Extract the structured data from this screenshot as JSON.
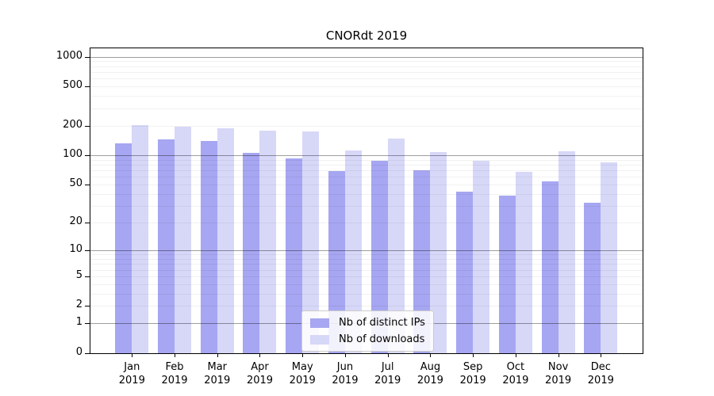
{
  "chart_data": {
    "type": "bar",
    "title": "CNORdt 2019",
    "categories": [
      "Jan",
      "Feb",
      "Mar",
      "Apr",
      "May",
      "Jun",
      "Jul",
      "Aug",
      "Sep",
      "Oct",
      "Nov",
      "Dec"
    ],
    "x_tick_second_line": "2019",
    "series": [
      {
        "name": "Nb of distinct IPs",
        "color": "#a6a6f2",
        "values": [
          131,
          144,
          139,
          105,
          93,
          69,
          88,
          70,
          42,
          38,
          54,
          32
        ]
      },
      {
        "name": "Nb of downloads",
        "color": "#d7d7f8",
        "values": [
          201,
          195,
          188,
          177,
          174,
          111,
          148,
          107,
          88,
          67,
          110,
          85
        ]
      }
    ],
    "xlabel": "",
    "ylabel": "",
    "yscale": "log1p",
    "y_ticks": [
      0,
      1,
      2,
      5,
      10,
      20,
      50,
      100,
      200,
      500,
      1000
    ],
    "ylim": [
      0,
      1230
    ],
    "grid": true,
    "gridline_emphasis_values": [
      1,
      10,
      100,
      1000
    ],
    "legend_position": "lower-center"
  }
}
